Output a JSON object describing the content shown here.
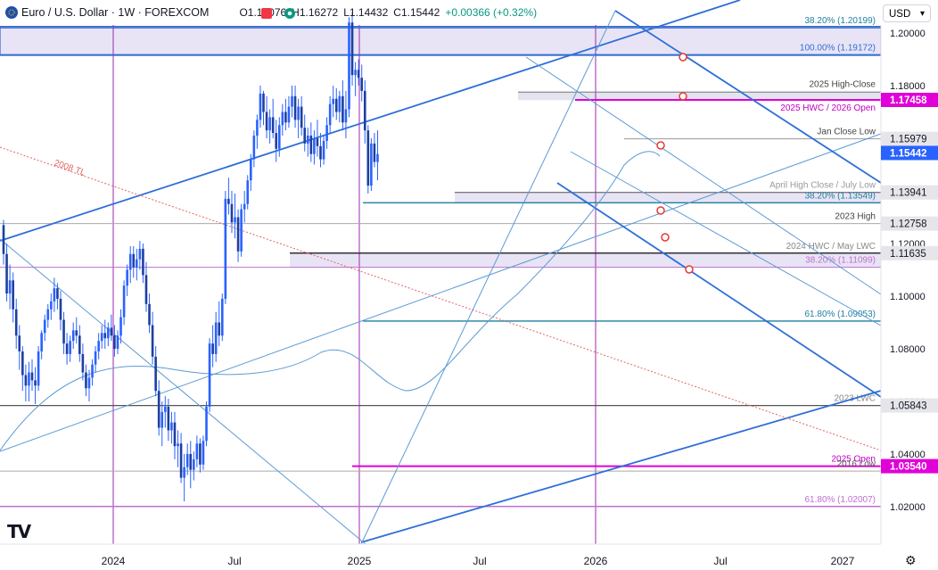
{
  "header": {
    "symbol_title": "Euro / U.S. Dollar · 1W · FOREXCOM",
    "open": "O1.15076",
    "high": "H1.16272",
    "low": "L1.14432",
    "close": "C1.15442",
    "change": "+0.00366 (+0.32%)",
    "currency": "USD"
  },
  "colors": {
    "candle_up": "#2962ff",
    "candle_down": "#2962ff",
    "trend_blue": "#2f6fd8",
    "light_blue": "#5b9bd5",
    "fib_teal": "#1f7fa0",
    "magenta": "#e000d8",
    "purple_vline": "#9c27b0",
    "zone_fill": "#e8e4f5",
    "tl_red": "#e06666",
    "grey_level": "#888888",
    "dark_level": "#333333"
  },
  "chart_data": {
    "type": "candlestick",
    "title": "",
    "ylim": [
      1.01,
      1.215
    ],
    "y_ticks": [
      "1.20000",
      "1.18000",
      "1.16000",
      "1.14000",
      "1.12000",
      "1.10000",
      "1.08000",
      "1.06000",
      "1.04000",
      "1.02000"
    ],
    "x_ticks": [
      "2024",
      "Jul",
      "2025",
      "Jul",
      "2026",
      "Jul",
      "2027"
    ],
    "grid": false,
    "candles": [
      [
        1.127,
        1.129,
        1.112,
        1.116
      ],
      [
        1.116,
        1.12,
        1.098,
        1.101
      ],
      [
        1.101,
        1.112,
        1.095,
        1.106
      ],
      [
        1.106,
        1.109,
        1.09,
        1.095
      ],
      [
        1.095,
        1.099,
        1.08,
        1.085
      ],
      [
        1.085,
        1.089,
        1.072,
        1.079
      ],
      [
        1.079,
        1.081,
        1.064,
        1.07
      ],
      [
        1.07,
        1.074,
        1.06,
        1.066
      ],
      [
        1.066,
        1.075,
        1.06,
        1.071
      ],
      [
        1.071,
        1.076,
        1.064,
        1.068
      ],
      [
        1.068,
        1.073,
        1.059,
        1.066
      ],
      [
        1.066,
        1.081,
        1.064,
        1.079
      ],
      [
        1.079,
        1.087,
        1.076,
        1.086
      ],
      [
        1.086,
        1.093,
        1.083,
        1.091
      ],
      [
        1.091,
        1.097,
        1.088,
        1.095
      ],
      [
        1.095,
        1.101,
        1.091,
        1.098
      ],
      [
        1.098,
        1.107,
        1.094,
        1.103
      ],
      [
        1.103,
        1.105,
        1.095,
        1.099
      ],
      [
        1.099,
        1.102,
        1.087,
        1.091
      ],
      [
        1.091,
        1.094,
        1.078,
        1.082
      ],
      [
        1.082,
        1.086,
        1.074,
        1.078
      ],
      [
        1.078,
        1.085,
        1.075,
        1.083
      ],
      [
        1.083,
        1.09,
        1.08,
        1.087
      ],
      [
        1.087,
        1.092,
        1.082,
        1.085
      ],
      [
        1.085,
        1.089,
        1.075,
        1.078
      ],
      [
        1.078,
        1.082,
        1.068,
        1.071
      ],
      [
        1.071,
        1.074,
        1.062,
        1.065
      ],
      [
        1.065,
        1.072,
        1.06,
        1.069
      ],
      [
        1.069,
        1.076,
        1.066,
        1.074
      ],
      [
        1.074,
        1.081,
        1.071,
        1.079
      ],
      [
        1.079,
        1.086,
        1.076,
        1.083
      ],
      [
        1.083,
        1.089,
        1.08,
        1.086
      ],
      [
        1.086,
        1.091,
        1.08,
        1.084
      ],
      [
        1.084,
        1.09,
        1.081,
        1.088
      ],
      [
        1.088,
        1.093,
        1.083,
        1.085
      ],
      [
        1.085,
        1.089,
        1.077,
        1.08
      ],
      [
        1.08,
        1.087,
        1.078,
        1.085
      ],
      [
        1.085,
        1.095,
        1.082,
        1.092
      ],
      [
        1.092,
        1.106,
        1.089,
        1.104
      ],
      [
        1.104,
        1.112,
        1.1,
        1.11
      ],
      [
        1.11,
        1.119,
        1.105,
        1.116
      ],
      [
        1.116,
        1.119,
        1.107,
        1.111
      ],
      [
        1.111,
        1.118,
        1.106,
        1.114
      ],
      [
        1.114,
        1.121,
        1.11,
        1.118
      ],
      [
        1.118,
        1.12,
        1.105,
        1.108
      ],
      [
        1.108,
        1.113,
        1.094,
        1.097
      ],
      [
        1.097,
        1.101,
        1.086,
        1.089
      ],
      [
        1.089,
        1.094,
        1.074,
        1.077
      ],
      [
        1.077,
        1.081,
        1.062,
        1.064
      ],
      [
        1.064,
        1.068,
        1.047,
        1.05
      ],
      [
        1.05,
        1.06,
        1.043,
        1.056
      ],
      [
        1.056,
        1.062,
        1.05,
        1.058
      ],
      [
        1.058,
        1.061,
        1.045,
        1.049
      ],
      [
        1.049,
        1.056,
        1.044,
        1.052
      ],
      [
        1.052,
        1.056,
        1.038,
        1.043
      ],
      [
        1.043,
        1.049,
        1.035,
        1.044
      ],
      [
        1.044,
        1.048,
        1.029,
        1.031
      ],
      [
        1.031,
        1.04,
        1.022,
        1.035
      ],
      [
        1.035,
        1.044,
        1.032,
        1.04
      ],
      [
        1.04,
        1.045,
        1.027,
        1.034
      ],
      [
        1.034,
        1.041,
        1.03,
        1.038
      ],
      [
        1.038,
        1.047,
        1.035,
        1.044
      ],
      [
        1.044,
        1.046,
        1.033,
        1.036
      ],
      [
        1.036,
        1.047,
        1.034,
        1.045
      ],
      [
        1.045,
        1.06,
        1.043,
        1.058
      ],
      [
        1.058,
        1.084,
        1.056,
        1.082
      ],
      [
        1.082,
        1.089,
        1.073,
        1.078
      ],
      [
        1.078,
        1.094,
        1.075,
        1.09
      ],
      [
        1.09,
        1.098,
        1.081,
        1.085
      ],
      [
        1.085,
        1.101,
        1.083,
        1.099
      ],
      [
        1.099,
        1.14,
        1.097,
        1.137
      ],
      [
        1.137,
        1.145,
        1.131,
        1.135
      ],
      [
        1.135,
        1.14,
        1.124,
        1.128
      ],
      [
        1.128,
        1.139,
        1.122,
        1.13
      ],
      [
        1.13,
        1.133,
        1.113,
        1.117
      ],
      [
        1.117,
        1.135,
        1.115,
        1.133
      ],
      [
        1.133,
        1.14,
        1.128,
        1.135
      ],
      [
        1.135,
        1.146,
        1.133,
        1.144
      ],
      [
        1.144,
        1.154,
        1.14,
        1.152
      ],
      [
        1.152,
        1.163,
        1.149,
        1.161
      ],
      [
        1.161,
        1.169,
        1.156,
        1.167
      ],
      [
        1.167,
        1.18,
        1.164,
        1.177
      ],
      [
        1.177,
        1.178,
        1.165,
        1.17
      ],
      [
        1.17,
        1.176,
        1.16,
        1.163
      ],
      [
        1.163,
        1.171,
        1.158,
        1.168
      ],
      [
        1.168,
        1.175,
        1.16,
        1.162
      ],
      [
        1.162,
        1.167,
        1.151,
        1.156
      ],
      [
        1.156,
        1.168,
        1.153,
        1.165
      ],
      [
        1.165,
        1.173,
        1.161,
        1.17
      ],
      [
        1.17,
        1.175,
        1.163,
        1.166
      ],
      [
        1.166,
        1.176,
        1.164,
        1.172
      ],
      [
        1.172,
        1.18,
        1.168,
        1.176
      ],
      [
        1.176,
        1.18,
        1.164,
        1.167
      ],
      [
        1.167,
        1.175,
        1.16,
        1.172
      ],
      [
        1.172,
        1.176,
        1.161,
        1.164
      ],
      [
        1.164,
        1.169,
        1.155,
        1.158
      ],
      [
        1.158,
        1.164,
        1.153,
        1.161
      ],
      [
        1.161,
        1.166,
        1.151,
        1.154
      ],
      [
        1.154,
        1.163,
        1.15,
        1.16
      ],
      [
        1.16,
        1.167,
        1.153,
        1.157
      ],
      [
        1.157,
        1.162,
        1.149,
        1.152
      ],
      [
        1.152,
        1.161,
        1.15,
        1.159
      ],
      [
        1.159,
        1.168,
        1.156,
        1.165
      ],
      [
        1.165,
        1.176,
        1.162,
        1.173
      ],
      [
        1.173,
        1.18,
        1.168,
        1.175
      ],
      [
        1.175,
        1.179,
        1.167,
        1.17
      ],
      [
        1.17,
        1.178,
        1.166,
        1.176
      ],
      [
        1.176,
        1.182,
        1.163,
        1.166
      ],
      [
        1.166,
        1.178,
        1.16,
        1.171
      ],
      [
        1.171,
        1.206,
        1.168,
        1.204
      ],
      [
        1.204,
        1.208,
        1.18,
        1.184
      ],
      [
        1.184,
        1.189,
        1.176,
        1.186
      ],
      [
        1.186,
        1.19,
        1.18,
        1.183
      ],
      [
        1.183,
        1.188,
        1.174,
        1.178
      ],
      [
        1.178,
        1.182,
        1.158,
        1.163
      ],
      [
        1.163,
        1.165,
        1.139,
        1.142
      ],
      [
        1.142,
        1.16,
        1.14,
        1.158
      ],
      [
        1.158,
        1.162,
        1.149,
        1.151
      ],
      [
        1.151,
        1.163,
        1.144,
        1.154
      ]
    ],
    "levels": [
      {
        "label": "38.20% (1.20199)",
        "price": 1.20199
      },
      {
        "label": "100.00% (1.19172)",
        "price": 1.19172
      },
      {
        "label": "2025 High-Close",
        "price": 1.1775
      },
      {
        "label": "2025 HWC / 2026 Open",
        "price": 1.17458
      },
      {
        "label": "Jan Close Low",
        "price": 1.15979
      },
      {
        "label": "April High Close / July Low",
        "price": 1.13941
      },
      {
        "label": "38.20% (1.13549)",
        "price": 1.13549
      },
      {
        "label": "2023 High",
        "price": 1.12758
      },
      {
        "label": "2024 HWC / May LWC",
        "price": 1.11635
      },
      {
        "label": "38.20% (1.11099)",
        "price": 1.11099
      },
      {
        "label": "61.80% (1.09053)",
        "price": 1.09053
      },
      {
        "label": "2023 LWC",
        "price": 1.05843
      },
      {
        "label": "2025 Open",
        "price": 1.0354
      },
      {
        "label": "2016 Low",
        "price": 1.0335
      },
      {
        "label": "61.80% (1.02007)",
        "price": 1.02007
      }
    ],
    "price_badges": [
      {
        "text": "1.17458",
        "price": 1.17458,
        "bg": "#e000d8"
      },
      {
        "text": "1.15979",
        "price": 1.15979,
        "bg": "#e6e6ea"
      },
      {
        "text": "1.15442",
        "price": 1.15442,
        "bg": "#2962ff"
      },
      {
        "text": "1.13941",
        "price": 1.13941,
        "bg": "#e6e6ea"
      },
      {
        "text": "1.12758",
        "price": 1.12758,
        "bg": "#e6e6ea"
      },
      {
        "text": "1.11635",
        "price": 1.11635,
        "bg": "#e6e6ea"
      },
      {
        "text": "1.05843",
        "price": 1.05843,
        "bg": "#e6e6ea"
      },
      {
        "text": "1.03540",
        "price": 1.0354,
        "bg": "#e000d8"
      }
    ],
    "trendline_label": "2008 TL"
  }
}
